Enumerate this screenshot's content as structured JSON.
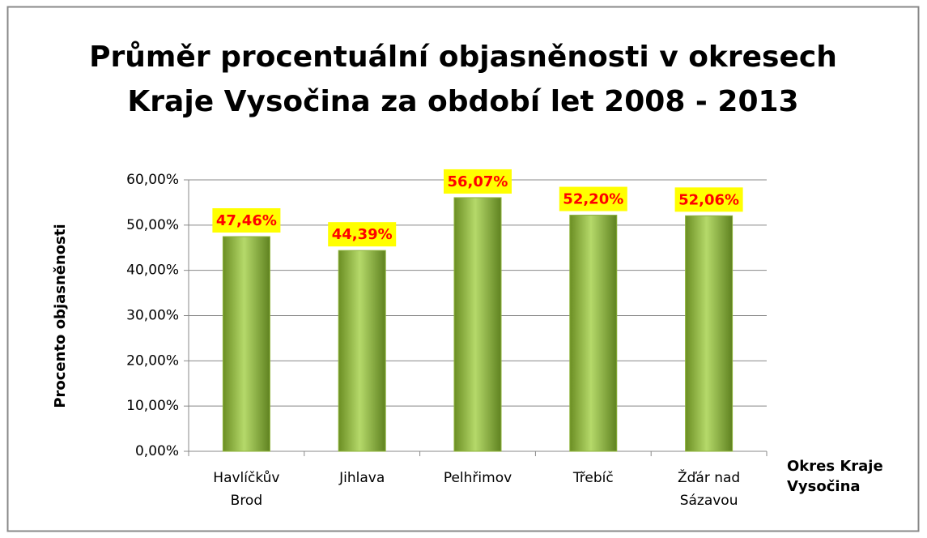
{
  "chart_data": {
    "type": "bar",
    "title": "Průměr procentuální objasněnosti v okresech\nKraje Vysočina za období let 2008 - 2013",
    "y_label": "Procento objasněnosti",
    "x_label": "Okres Kraje\nVysočina",
    "categories": [
      "Havlíčkův\nBrod",
      "Jihlava",
      "Pelhřimov",
      "Třebíč",
      "Žďár nad\nSázavou"
    ],
    "values": [
      47.46,
      44.39,
      56.07,
      52.2,
      52.06
    ],
    "value_labels": [
      "47,46%",
      "44,39%",
      "56,07%",
      "52,20%",
      "52,06%"
    ],
    "color": "#8db33a",
    "ylim": [
      0,
      60
    ],
    "yticks": [
      {
        "value": 0,
        "label": "0,00%"
      },
      {
        "value": 10,
        "label": "10,00%"
      },
      {
        "value": 20,
        "label": "20,00%"
      },
      {
        "value": 30,
        "label": "30,00%"
      },
      {
        "value": 40,
        "label": "40,00%"
      },
      {
        "value": 50,
        "label": "50,00%"
      },
      {
        "value": 60,
        "label": "60,00%"
      }
    ],
    "grid": true
  }
}
